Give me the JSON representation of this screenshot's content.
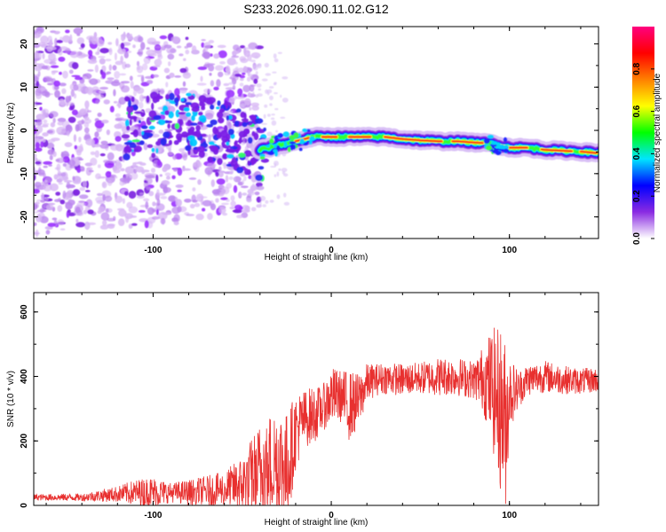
{
  "title": "S233.2026.090.11.02.G12",
  "chart_data": [
    {
      "type": "heatmap",
      "xlabel": "Height of straight line (km)",
      "ylabel": "Frequency (Hz)",
      "xlim": [
        -167,
        150
      ],
      "ylim": [
        -25,
        24
      ],
      "xticks": [
        -100,
        0,
        100
      ],
      "xtick_labels": [
        "-100",
        "0",
        "100"
      ],
      "yticks": [
        -20,
        -10,
        0,
        10,
        20
      ],
      "ytick_labels": [
        "-20",
        "-10",
        "0",
        "10",
        "20"
      ],
      "ridge": {
        "x": [
          -110,
          -90,
          -70,
          -55,
          -40,
          -30,
          -20,
          -10,
          0,
          10,
          20,
          30,
          40,
          50,
          60,
          70,
          80,
          90,
          100,
          110,
          120,
          130,
          140,
          148
        ],
        "y": [
          0.5,
          2.5,
          0.5,
          -1.5,
          -4.5,
          -3.5,
          -2.5,
          -1.5,
          -1.5,
          -1.5,
          -1.5,
          -1.5,
          -2.0,
          -2.3,
          -2.5,
          -2.5,
          -2.8,
          -3.0,
          -4.0,
          -4.0,
          -4.5,
          -4.7,
          -4.9,
          -5.2
        ]
      },
      "noise_region": {
        "x": [
          -167,
          -40
        ]
      },
      "colorbar": {
        "label": "Normalized spectral amplitude",
        "range": [
          0,
          1
        ],
        "ticks": [
          "0.0",
          "0.2",
          "0.4",
          "0.6",
          "0.8"
        ],
        "colors": [
          "#ffffff",
          "#8a2be2",
          "#0000ff",
          "#00e5ff",
          "#00ff00",
          "#ffff00",
          "#ff8000",
          "#ff0000",
          "#ff007f"
        ]
      }
    },
    {
      "type": "line",
      "xlabel": "Height of straight line (km)",
      "ylabel": "SNR (10 * v/v)",
      "xlim": [
        -167,
        150
      ],
      "ylim": [
        0,
        660
      ],
      "xticks": [
        -100,
        0,
        100
      ],
      "xtick_labels": [
        "-100",
        "0",
        "100"
      ],
      "yticks": [
        0,
        200,
        400,
        600
      ],
      "ytick_labels": [
        "0",
        "200",
        "400",
        "600"
      ],
      "color": "#e8302f",
      "envelope": {
        "x": [
          -167,
          -140,
          -120,
          -110,
          -100,
          -90,
          -80,
          -60,
          -50,
          -40,
          -30,
          -25,
          -20,
          -15,
          -10,
          -5,
          0,
          5,
          10,
          15,
          20,
          25,
          30,
          40,
          50,
          60,
          70,
          80,
          85,
          90,
          95,
          98,
          100,
          105,
          110,
          120,
          130,
          140,
          150
        ],
        "mean": [
          25,
          25,
          35,
          40,
          40,
          40,
          40,
          50,
          65,
          110,
          140,
          110,
          230,
          270,
          280,
          300,
          340,
          340,
          310,
          320,
          380,
          390,
          395,
          390,
          395,
          400,
          400,
          390,
          395,
          370,
          300,
          250,
          350,
          360,
          390,
          400,
          390,
          385,
          390
        ],
        "amp": [
          10,
          12,
          25,
          40,
          50,
          30,
          40,
          55,
          90,
          150,
          180,
          180,
          120,
          90,
          90,
          70,
          90,
          80,
          110,
          90,
          60,
          50,
          50,
          50,
          50,
          60,
          60,
          60,
          100,
          180,
          260,
          260,
          120,
          60,
          50,
          50,
          45,
          40,
          40
        ]
      }
    }
  ]
}
